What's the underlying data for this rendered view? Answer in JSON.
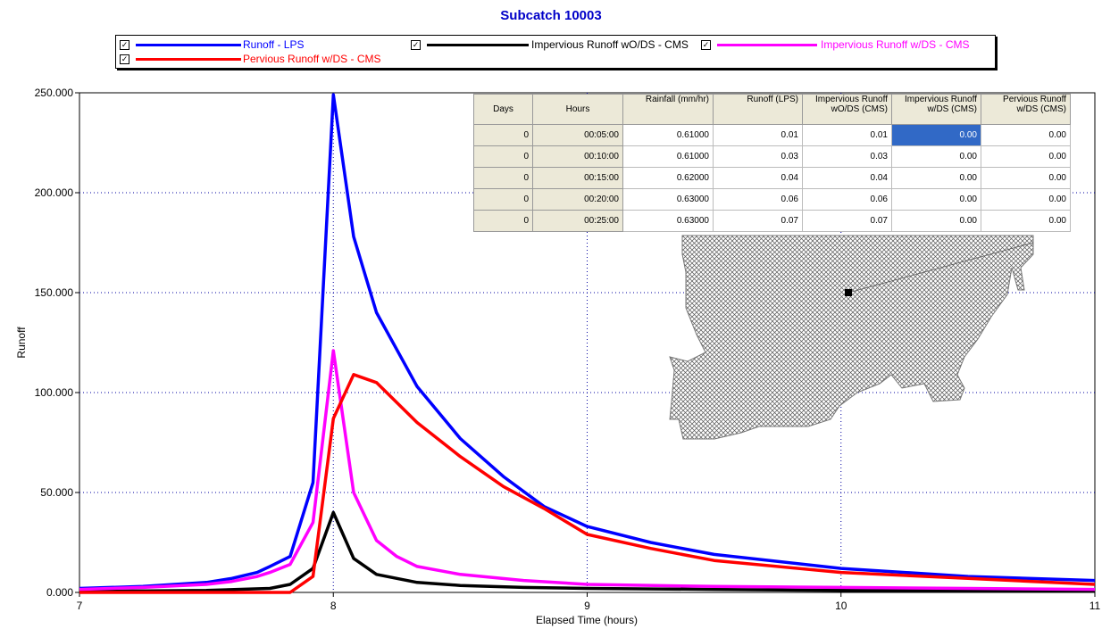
{
  "chart_data": {
    "type": "line",
    "title": "Subcatch 10003",
    "xlabel": "Elapsed Time (hours)",
    "ylabel": "Runoff",
    "xlim": [
      7,
      11
    ],
    "ylim": [
      0,
      250
    ],
    "xticks": [
      7,
      8,
      9,
      10,
      11
    ],
    "yticks": [
      0,
      50,
      100,
      150,
      200,
      250
    ],
    "ytick_labels": [
      "0.000",
      "50.000",
      "100.000",
      "150.000",
      "200.000",
      "250.000"
    ],
    "grid": true,
    "legend_position": "top",
    "series": [
      {
        "name": "Runoff - LPS",
        "color": "#0000ff",
        "x": [
          7.0,
          7.25,
          7.5,
          7.6,
          7.7,
          7.75,
          7.83,
          7.92,
          8.0,
          8.08,
          8.17,
          8.33,
          8.5,
          8.67,
          8.83,
          9.0,
          9.25,
          9.5,
          10.0,
          10.5,
          11.0
        ],
        "y": [
          2,
          3,
          5,
          7,
          10,
          13,
          18,
          55,
          249,
          178,
          140,
          103,
          77,
          58,
          43,
          33,
          25,
          19,
          12,
          8,
          6
        ]
      },
      {
        "name": "Impervious Runoff wO/DS - CMS",
        "color": "#000000",
        "x": [
          7.0,
          7.5,
          7.75,
          7.83,
          7.92,
          8.0,
          8.08,
          8.17,
          8.33,
          8.5,
          8.75,
          9.0,
          9.5,
          10.0,
          10.5,
          11.0
        ],
        "y": [
          0.5,
          1,
          2,
          4,
          12,
          40,
          17,
          9,
          5,
          3.5,
          2.5,
          2,
          1.5,
          1,
          0.8,
          0.6
        ]
      },
      {
        "name": "Impervious Runoff w/DS - CMS",
        "color": "#ff00ff",
        "x": [
          7.0,
          7.25,
          7.5,
          7.6,
          7.7,
          7.75,
          7.83,
          7.92,
          8.0,
          8.08,
          8.17,
          8.25,
          8.33,
          8.5,
          8.75,
          9.0,
          9.5,
          10.0,
          10.5,
          11.0
        ],
        "y": [
          1.5,
          2.5,
          4,
          5.5,
          8,
          10,
          14,
          35,
          121,
          50,
          26,
          18,
          13,
          9,
          6,
          4,
          3,
          2.5,
          2,
          1.5
        ]
      },
      {
        "name": "Pervious Runoff w/DS - CMS",
        "color": "#ff0000",
        "x": [
          7.0,
          7.5,
          7.83,
          7.92,
          8.0,
          8.08,
          8.17,
          8.33,
          8.5,
          8.67,
          8.83,
          9.0,
          9.25,
          9.5,
          10.0,
          10.5,
          11.0
        ],
        "y": [
          0,
          0,
          0,
          8,
          87,
          109,
          105,
          85,
          68,
          53,
          42,
          29,
          22,
          16,
          10,
          7,
          4
        ]
      }
    ]
  },
  "legend": [
    {
      "label": "Runoff - LPS",
      "checked": "✓"
    },
    {
      "label": "Impervious Runoff wO/DS - CMS",
      "checked": "✓"
    },
    {
      "label": "Impervious Runoff w/DS - CMS",
      "checked": "✓"
    },
    {
      "label": "Pervious Runoff w/DS - CMS",
      "checked": "✓"
    }
  ],
  "table": {
    "headers": [
      "Days",
      "Hours",
      "Rainfall (mm/hr)",
      "Runoff (LPS)",
      "Impervious Runoff wO/DS (CMS)",
      "Impervious Runoff w/DS (CMS)",
      "Pervious Runoff w/DS (CMS)"
    ],
    "rows": [
      [
        "0",
        "00:05:00",
        "0.61000",
        "0.01",
        "0.01",
        "0.00",
        "0.00"
      ],
      [
        "0",
        "00:10:00",
        "0.61000",
        "0.03",
        "0.03",
        "0.00",
        "0.00"
      ],
      [
        "0",
        "00:15:00",
        "0.62000",
        "0.04",
        "0.04",
        "0.00",
        "0.00"
      ],
      [
        "0",
        "00:20:00",
        "0.63000",
        "0.06",
        "0.06",
        "0.00",
        "0.00"
      ],
      [
        "0",
        "00:25:00",
        "0.63000",
        "0.07",
        "0.07",
        "0.00",
        "0.00"
      ]
    ]
  }
}
